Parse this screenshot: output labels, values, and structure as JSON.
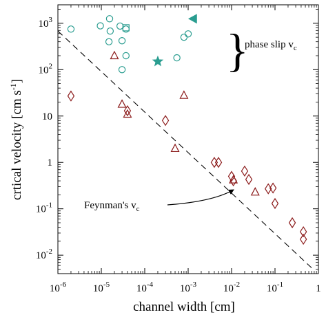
{
  "chart_data": {
    "type": "scatter",
    "title": "",
    "xlabel": "channel width [cm]",
    "ylabel": "crtical velocity [cm s",
    "ylabel_sup": "-1",
    "ylabel_close": "]",
    "x_log": true,
    "y_log": true,
    "xlim": [
      1e-06,
      1
    ],
    "ylim": [
      0.004,
      2500
    ],
    "grid": false,
    "x_ticks": [
      {
        "v": 1e-06,
        "base": "10",
        "exp": "-6"
      },
      {
        "v": 1e-05,
        "base": "10",
        "exp": "-5"
      },
      {
        "v": 0.0001,
        "base": "10",
        "exp": "-4"
      },
      {
        "v": 0.001,
        "base": "10",
        "exp": "-3"
      },
      {
        "v": 0.01,
        "base": "10",
        "exp": "-2"
      },
      {
        "v": 0.1,
        "base": "10",
        "exp": "-1"
      },
      {
        "v": 1,
        "base": "1",
        "exp": ""
      }
    ],
    "y_ticks": [
      {
        "v": 0.01,
        "base": "10",
        "exp": "-2"
      },
      {
        "v": 0.1,
        "base": "10",
        "exp": "-1"
      },
      {
        "v": 1,
        "base": "1",
        "exp": ""
      },
      {
        "v": 10,
        "base": "10",
        "exp": ""
      },
      {
        "v": 100,
        "base": "10",
        "exp": "2"
      },
      {
        "v": 1000,
        "base": "10",
        "exp": "3"
      }
    ],
    "colors": {
      "teal": "#2a9d90",
      "red": "#8b1a1a",
      "line": "#000000"
    },
    "series": [
      {
        "marker": "circle",
        "color": "teal",
        "points": [
          [
            2e-06,
            750
          ],
          [
            9.5e-06,
            880
          ],
          [
            1.55e-05,
            1250
          ],
          [
            1.6e-05,
            680
          ],
          [
            1.5e-05,
            400
          ],
          [
            2.7e-05,
            870
          ],
          [
            3e-05,
            420
          ],
          [
            3e-05,
            100
          ],
          [
            3.7e-05,
            200
          ],
          [
            3.7e-05,
            750
          ],
          [
            0.00055,
            180
          ],
          [
            0.0008,
            500
          ],
          [
            0.001,
            590
          ]
        ]
      },
      {
        "marker": "square",
        "color": "teal",
        "points": [
          [
            3.7e-05,
            800
          ]
        ]
      },
      {
        "marker": "star",
        "color": "teal",
        "points": [
          [
            0.0002,
            150
          ]
        ]
      },
      {
        "marker": "triangle-left",
        "color": "teal",
        "points": [
          [
            0.0013,
            1250
          ]
        ]
      },
      {
        "marker": "diamond",
        "color": "red",
        "points": [
          [
            2e-06,
            27
          ],
          [
            4e-05,
            13
          ],
          [
            0.0003,
            8
          ],
          [
            0.004,
            1
          ],
          [
            0.005,
            1
          ],
          [
            0.01,
            0.5
          ],
          [
            0.011,
            0.4
          ],
          [
            0.02,
            0.65
          ],
          [
            0.025,
            0.43
          ],
          [
            0.07,
            0.27
          ],
          [
            0.09,
            0.28
          ],
          [
            0.1,
            0.13
          ],
          [
            0.25,
            0.05
          ],
          [
            0.45,
            0.032
          ],
          [
            0.45,
            0.022
          ]
        ]
      },
      {
        "marker": "triangle-up",
        "color": "red",
        "points": [
          [
            2e-05,
            200
          ],
          [
            3e-05,
            18
          ],
          [
            4e-05,
            11
          ],
          [
            0.0005,
            2
          ],
          [
            0.0008,
            28
          ],
          [
            0.011,
            0.42
          ],
          [
            0.035,
            0.23
          ]
        ]
      }
    ],
    "feynman_line": {
      "x": [
        1e-06,
        0.75
      ],
      "y": [
        680,
        0.005
      ]
    },
    "annotations": {
      "phase_slip_label": "phase slip v",
      "phase_slip_sub": "c",
      "feynman_label": "Feynman's v",
      "feynman_sub": "c"
    }
  }
}
